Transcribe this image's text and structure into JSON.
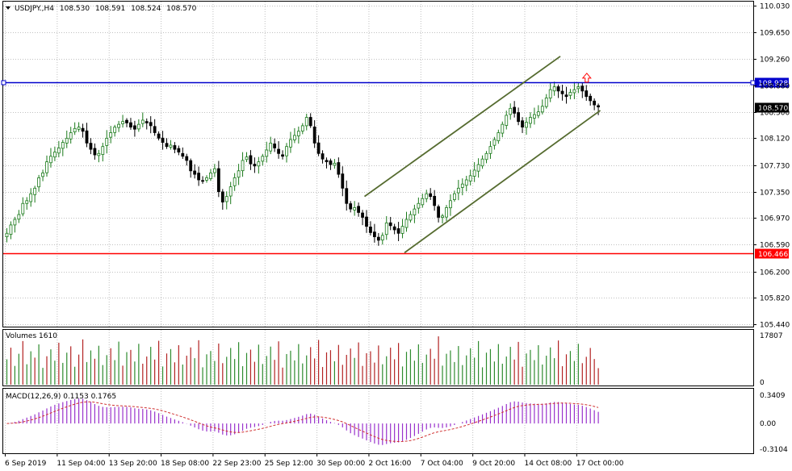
{
  "symbol_header": {
    "symbol": "USDJPY.,H4",
    "open": "108.530",
    "high": "108.591",
    "low": "108.524",
    "close": "108.570"
  },
  "colors": {
    "background": "#ffffff",
    "grid": "#c0c0c0",
    "bull_candle": "#1a7a1a",
    "bear_candle": "#000000",
    "channel": "#556b2f",
    "resistance": "#0000cc",
    "support": "#ff0000",
    "price_tag": "#000000",
    "volume_up": "#2e8b2e",
    "volume_down": "#b22222",
    "macd_hist": "#9932cc",
    "macd_signal": "#d03030",
    "arrow": "#ff0000"
  },
  "chart_data": [
    {
      "type": "candlestick",
      "name": "price",
      "ylim": [
        105.44,
        110.03
      ],
      "yticks": [
        "110.030",
        "109.650",
        "109.260",
        "108.880",
        "108.500",
        "108.120",
        "107.730",
        "107.350",
        "106.970",
        "106.590",
        "106.200",
        "105.820",
        "105.440"
      ],
      "horizontal_lines": [
        {
          "price": 108.928,
          "label": "108.928",
          "color": "resistance"
        },
        {
          "price": 106.466,
          "label": "106.466",
          "color": "support"
        }
      ],
      "current_price": {
        "price": 108.57,
        "label": "108.570"
      },
      "channel": {
        "upper": [
          [
            90,
            107.28
          ],
          [
            139,
            109.3
          ]
        ],
        "lower": [
          [
            100,
            106.47
          ],
          [
            149,
            108.52
          ]
        ]
      },
      "buy_arrow_at_index": 144,
      "closes": [
        106.75,
        106.87,
        106.95,
        107.02,
        107.18,
        107.22,
        107.32,
        107.4,
        107.55,
        107.62,
        107.78,
        107.86,
        107.92,
        107.98,
        108.06,
        108.12,
        108.2,
        108.26,
        108.28,
        108.22,
        108.05,
        107.96,
        107.88,
        107.9,
        108.0,
        108.12,
        108.2,
        108.28,
        108.32,
        108.36,
        108.34,
        108.28,
        108.25,
        108.32,
        108.38,
        108.34,
        108.3,
        108.2,
        108.12,
        108.06,
        108.0,
        108.02,
        107.96,
        107.92,
        107.86,
        107.8,
        107.65,
        107.6,
        107.52,
        107.5,
        107.55,
        107.62,
        107.68,
        107.35,
        107.2,
        107.28,
        107.42,
        107.55,
        107.65,
        107.8,
        107.85,
        107.75,
        107.72,
        107.78,
        107.86,
        107.95,
        108.05,
        107.98,
        107.9,
        107.86,
        108.0,
        108.1,
        108.16,
        108.22,
        108.3,
        108.42,
        108.3,
        108.05,
        107.9,
        107.82,
        107.78,
        107.74,
        107.76,
        107.6,
        107.4,
        107.18,
        107.1,
        107.12,
        107.05,
        106.98,
        106.85,
        106.76,
        106.7,
        106.65,
        106.72,
        106.9,
        106.86,
        106.8,
        106.75,
        106.85,
        106.95,
        107.02,
        107.1,
        107.18,
        107.25,
        107.32,
        107.28,
        107.15,
        106.98,
        107.0,
        107.12,
        107.22,
        107.32,
        107.4,
        107.46,
        107.52,
        107.58,
        107.66,
        107.74,
        107.82,
        107.9,
        108.0,
        108.1,
        108.2,
        108.32,
        108.45,
        108.55,
        108.48,
        108.36,
        108.28,
        108.35,
        108.42,
        108.46,
        108.5,
        108.58,
        108.7,
        108.82,
        108.86,
        108.8,
        108.76,
        108.72,
        108.78,
        108.82,
        108.86,
        108.8,
        108.72,
        108.66,
        108.6,
        108.57
      ]
    },
    {
      "type": "bar",
      "name": "volume",
      "title": "Volumes 1610",
      "ylim": [
        0,
        17807
      ],
      "yticks": [
        "17807",
        "0"
      ],
      "values": [
        9200,
        13400,
        6800,
        11200,
        15800,
        7400,
        12100,
        9800,
        14600,
        6100,
        10300,
        12800,
        8700,
        15200,
        7900,
        11600,
        13900,
        6500,
        10900,
        16400,
        8200,
        12400,
        9400,
        14100,
        7100,
        10700,
        13200,
        8900,
        15600,
        6900,
        11800,
        12600,
        8400,
        14800,
        7600,
        10200,
        13700,
        9100,
        15900,
        6600,
        11300,
        12900,
        8100,
        14300,
        7300,
        10500,
        13500,
        9600,
        16100,
        6300,
        11000,
        12200,
        8600,
        14900,
        7800,
        10100,
        13300,
        9300,
        15400,
        6700,
        11500,
        12700,
        8300,
        14500,
        7500,
        10400,
        13800,
        9000,
        15700,
        6200,
        11100,
        12300,
        8800,
        14700,
        7700,
        10600,
        13600,
        9500,
        16200,
        6400,
        11700,
        12500,
        8500,
        14400,
        7200,
        10800,
        13100,
        9700,
        15300,
        6800,
        11400,
        12100,
        8000,
        14200,
        7400,
        10300,
        13400,
        9200,
        15100,
        6600,
        11900,
        12800,
        8700,
        14600,
        7900,
        10900,
        13000,
        9400,
        17500,
        6900,
        11200,
        12400,
        8200,
        14000,
        7100,
        10600,
        13200,
        9800,
        15800,
        6300,
        11600,
        12900,
        8400,
        14700,
        7600,
        10200,
        13700,
        9100,
        15500,
        6500,
        11300,
        12600,
        8900,
        14300,
        7300,
        10500,
        13500,
        9600,
        16000,
        6700,
        11000,
        12200,
        8600,
        14800,
        7800,
        10100,
        13300,
        9300,
        6000
      ],
      "up": [
        true,
        false,
        true,
        true,
        false,
        true,
        true,
        false,
        true,
        true,
        false,
        true,
        true,
        false,
        true,
        true,
        false,
        true,
        false,
        false,
        true,
        true,
        false,
        true,
        true,
        true,
        false,
        true,
        true,
        false,
        true,
        false,
        true,
        true,
        false,
        false,
        true,
        false,
        false,
        true,
        false,
        true,
        false,
        false,
        true,
        false,
        false,
        true,
        false,
        true,
        true,
        true,
        true,
        false,
        false,
        true,
        true,
        true,
        true,
        true,
        true,
        false,
        false,
        true,
        true,
        true,
        true,
        false,
        false,
        false,
        true,
        true,
        true,
        true,
        true,
        true,
        false,
        false,
        false,
        false,
        false,
        false,
        true,
        false,
        false,
        false,
        false,
        true,
        false,
        false,
        false,
        false,
        false,
        false,
        true,
        true,
        false,
        false,
        false,
        true,
        true,
        true,
        true,
        true,
        true,
        true,
        false,
        false,
        false,
        true,
        true,
        true,
        true,
        true,
        true,
        true,
        true,
        true,
        true,
        true,
        true,
        true,
        true,
        true,
        true,
        true,
        true,
        false,
        false,
        false,
        true,
        true,
        true,
        true,
        true,
        true,
        true,
        true,
        false,
        false,
        false,
        true,
        true,
        true,
        false,
        false,
        false,
        false,
        false
      ]
    },
    {
      "type": "bar",
      "name": "macd",
      "title": "MACD(12,26,9) 0.1153 0.1765",
      "ylim": [
        -0.3104,
        0.3409
      ],
      "yticks": [
        "0.3409",
        "0.00",
        "-0.3104"
      ]
    }
  ],
  "x_axis": {
    "labels": [
      "6 Sep 2019",
      "11 Sep 04:00",
      "13 Sep 20:00",
      "18 Sep 08:00",
      "22 Sep 23:00",
      "25 Sep 12:00",
      "30 Sep 00:00",
      "2 Oct 16:00",
      "7 Oct 04:00",
      "9 Oct 20:00",
      "14 Oct 08:00",
      "17 Oct 00:00"
    ]
  }
}
